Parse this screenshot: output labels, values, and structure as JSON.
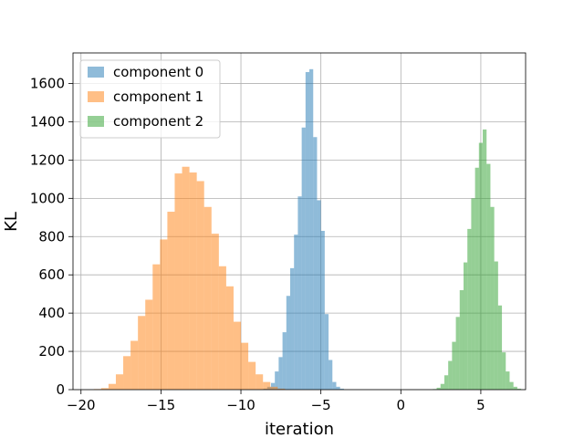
{
  "chart_data": {
    "type": "histogram",
    "xlabel": "iteration",
    "ylabel": "KL",
    "xlim": [
      -20.5,
      7.8
    ],
    "ylim": [
      0,
      1760
    ],
    "xticks": [
      -20,
      -15,
      -10,
      -5,
      0,
      5
    ],
    "xtick_labels": [
      "−20",
      "−15",
      "−10",
      "−5",
      "0",
      "5"
    ],
    "yticks": [
      0,
      200,
      400,
      600,
      800,
      1000,
      1200,
      1400,
      1600
    ],
    "grid": true,
    "legend_position": "top-left",
    "series": [
      {
        "name": "component 0",
        "color": "#1f77b4",
        "alpha": 0.5,
        "bin_width": 0.24,
        "bin_start": -8.6,
        "counts": [
          5,
          15,
          35,
          95,
          170,
          300,
          490,
          635,
          810,
          1010,
          1370,
          1660,
          1675,
          1320,
          990,
          830,
          395,
          155,
          40,
          15,
          5
        ]
      },
      {
        "name": "component 1",
        "color": "#ff7f0e",
        "alpha": 0.5,
        "bin_width": 0.46,
        "bin_start": -19.2,
        "counts": [
          3,
          8,
          30,
          80,
          175,
          255,
          385,
          470,
          655,
          785,
          930,
          1130,
          1165,
          1135,
          1090,
          955,
          815,
          645,
          540,
          355,
          245,
          145,
          80,
          40,
          15,
          5
        ]
      },
      {
        "name": "component 2",
        "color": "#2ca02c",
        "alpha": 0.5,
        "bin_width": 0.24,
        "bin_start": 2.0,
        "counts": [
          3,
          10,
          30,
          75,
          150,
          250,
          380,
          520,
          665,
          840,
          1000,
          1160,
          1290,
          1360,
          1180,
          955,
          670,
          440,
          195,
          95,
          40,
          15,
          5
        ]
      }
    ]
  }
}
